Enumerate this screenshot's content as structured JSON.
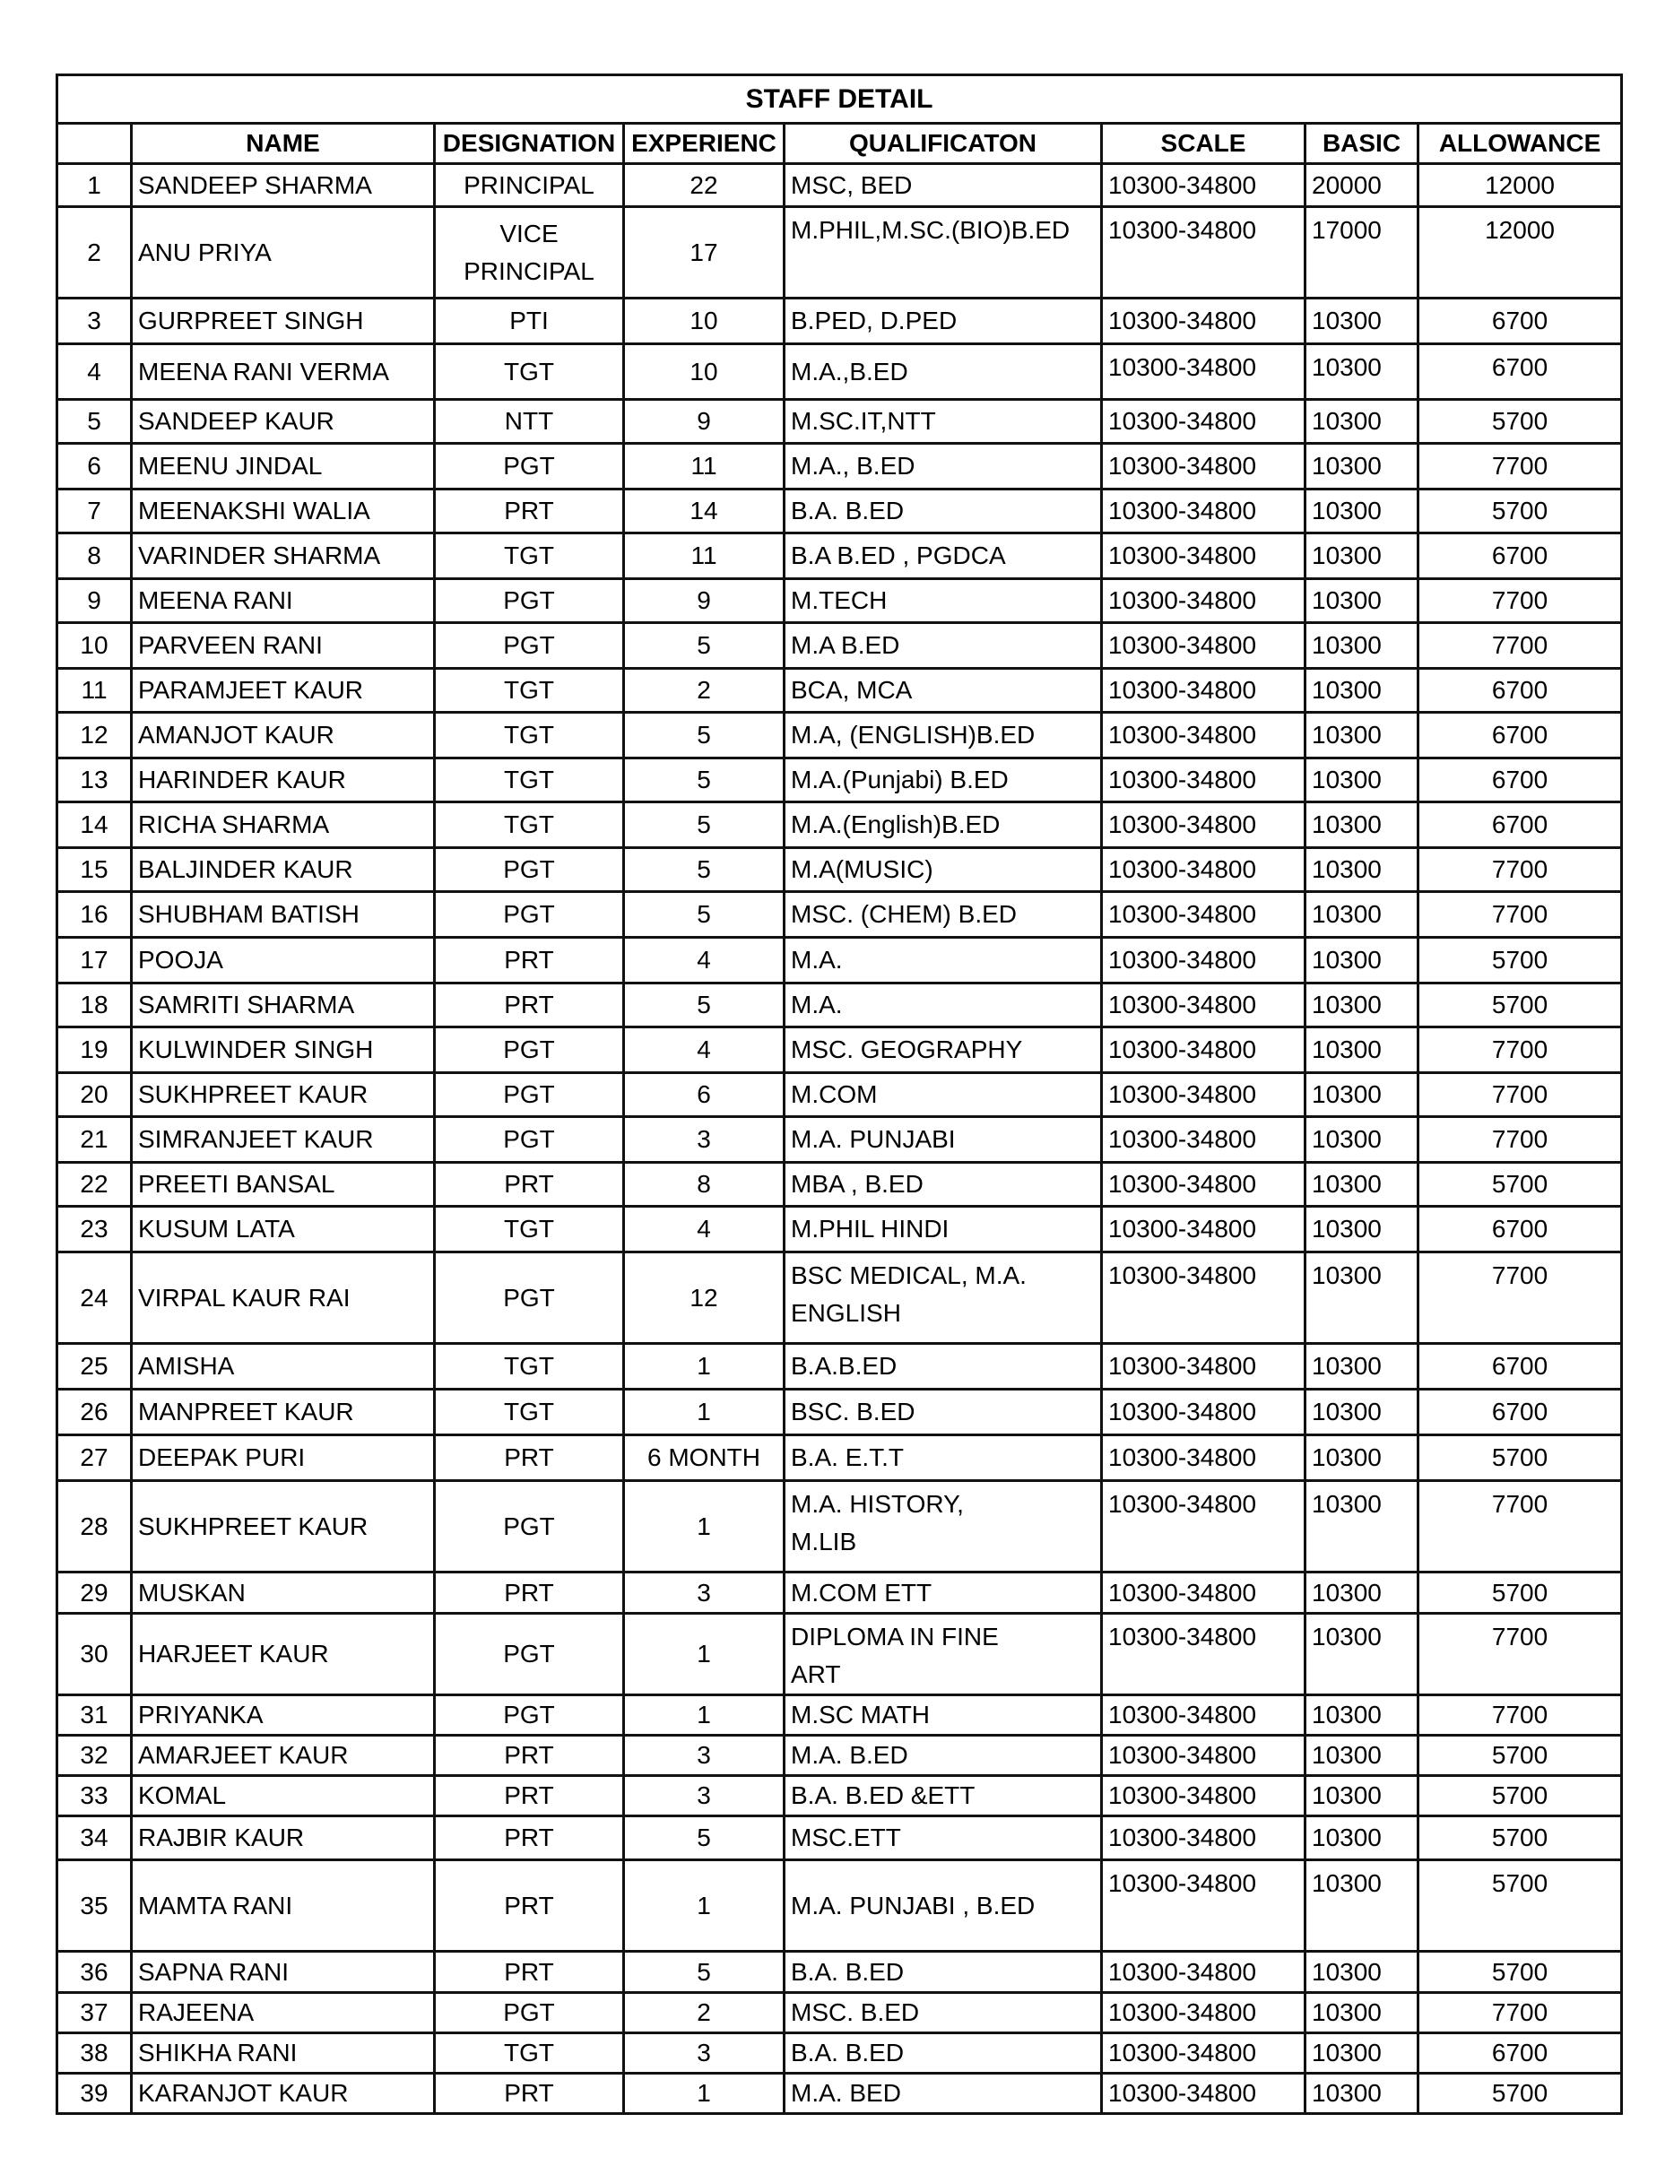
{
  "table": {
    "title": "STAFF DETAIL",
    "headers": [
      "",
      "NAME",
      "DESIGNATION",
      "EXPERIENC",
      "QUALIFICATON",
      "SCALE",
      "BASIC",
      "ALLOWANCE"
    ],
    "rows": [
      [
        "1",
        "SANDEEP SHARMA",
        "PRINCIPAL",
        "22",
        "MSC, BED",
        "10300-34800",
        "20000",
        "12000"
      ],
      [
        "2",
        "ANU PRIYA",
        "VICE\nPRINCIPAL",
        "17",
        "M.PHIL,M.SC.(BIO)B.ED",
        "10300-34800",
        "17000",
        "12000"
      ],
      [
        "3",
        "GURPREET SINGH",
        "PTI",
        "10",
        "B.PED, D.PED",
        "10300-34800",
        "10300",
        "6700"
      ],
      [
        "4",
        "MEENA RANI VERMA",
        "TGT",
        "10",
        "M.A.,B.ED",
        "10300-34800",
        "10300",
        "6700"
      ],
      [
        "5",
        "SANDEEP KAUR",
        "NTT",
        "9",
        "M.SC.IT,NTT",
        "10300-34800",
        "10300",
        "5700"
      ],
      [
        "6",
        "MEENU JINDAL",
        "PGT",
        "11",
        "M.A., B.ED",
        "10300-34800",
        "10300",
        "7700"
      ],
      [
        "7",
        "MEENAKSHI WALIA",
        "PRT",
        "14",
        "B.A. B.ED",
        "10300-34800",
        "10300",
        "5700"
      ],
      [
        "8",
        "VARINDER SHARMA",
        "TGT",
        "11",
        "B.A B.ED , PGDCA",
        "10300-34800",
        "10300",
        "6700"
      ],
      [
        "9",
        "MEENA RANI",
        "PGT",
        "9",
        "M.TECH",
        "10300-34800",
        "10300",
        "7700"
      ],
      [
        "10",
        "PARVEEN RANI",
        "PGT",
        "5",
        "M.A B.ED",
        "10300-34800",
        "10300",
        "7700"
      ],
      [
        "11",
        "PARAMJEET KAUR",
        "TGT",
        "2",
        "BCA, MCA",
        "10300-34800",
        "10300",
        "6700"
      ],
      [
        "12",
        "AMANJOT KAUR",
        "TGT",
        "5",
        "M.A, (ENGLISH)B.ED",
        "10300-34800",
        "10300",
        "6700"
      ],
      [
        "13",
        "HARINDER KAUR",
        "TGT",
        "5",
        "M.A.(Punjabi) B.ED",
        "10300-34800",
        "10300",
        "6700"
      ],
      [
        "14",
        "RICHA SHARMA",
        "TGT",
        "5",
        "M.A.(English)B.ED",
        "10300-34800",
        "10300",
        "6700"
      ],
      [
        "15",
        "BALJINDER KAUR",
        "PGT",
        "5",
        "M.A(MUSIC)",
        "10300-34800",
        "10300",
        "7700"
      ],
      [
        "16",
        "SHUBHAM BATISH",
        "PGT",
        "5",
        "MSC. (CHEM) B.ED",
        "10300-34800",
        "10300",
        "7700"
      ],
      [
        "17",
        "POOJA",
        "PRT",
        "4",
        "M.A.",
        "10300-34800",
        "10300",
        "5700"
      ],
      [
        "18",
        "SAMRITI  SHARMA",
        "PRT",
        "5",
        "M.A.",
        "10300-34800",
        "10300",
        "5700"
      ],
      [
        "19",
        "KULWINDER SINGH",
        "PGT",
        "4",
        "MSC. GEOGRAPHY",
        "10300-34800",
        "10300",
        "7700"
      ],
      [
        "20",
        "SUKHPREET KAUR",
        "PGT",
        "6",
        "M.COM",
        "10300-34800",
        "10300",
        "7700"
      ],
      [
        "21",
        "SIMRANJEET KAUR",
        "PGT",
        "3",
        "M.A. PUNJABI",
        "10300-34800",
        "10300",
        "7700"
      ],
      [
        "22",
        "PREETI BANSAL",
        "PRT",
        "8",
        "MBA , B.ED",
        "10300-34800",
        "10300",
        "5700"
      ],
      [
        "23",
        "KUSUM LATA",
        "TGT",
        "4",
        "M.PHIL HINDI",
        "10300-34800",
        "10300",
        "6700"
      ],
      [
        "24",
        "VIRPAL KAUR RAI",
        "PGT",
        "12",
        "BSC MEDICAL, M.A.\nENGLISH",
        "10300-34800",
        "10300",
        "7700"
      ],
      [
        "25",
        "AMISHA",
        "TGT",
        "1",
        "B.A.B.ED",
        "10300-34800",
        "10300",
        "6700"
      ],
      [
        "26",
        "MANPREET KAUR",
        "TGT",
        "1",
        "BSC. B.ED",
        "10300-34800",
        "10300",
        "6700"
      ],
      [
        "27",
        "DEEPAK PURI",
        "PRT",
        "6 MONTH",
        "B.A. E.T.T",
        "10300-34800",
        "10300",
        "5700"
      ],
      [
        "28",
        "SUKHPREET KAUR",
        "PGT",
        "1",
        "M.A. HISTORY,\nM.LIB",
        "10300-34800",
        "10300",
        "7700"
      ],
      [
        "29",
        "MUSKAN",
        "PRT",
        "3",
        "M.COM ETT",
        "10300-34800",
        "10300",
        "5700"
      ],
      [
        "30",
        "HARJEET KAUR",
        "PGT",
        "1",
        "DIPLOMA IN FINE\nART",
        "10300-34800",
        "10300",
        "7700"
      ],
      [
        "31",
        "PRIYANKA",
        "PGT",
        "1",
        "M.SC MATH",
        "10300-34800",
        "10300",
        "7700"
      ],
      [
        "32",
        "AMARJEET KAUR",
        "PRT",
        "3",
        "M.A. B.ED",
        "10300-34800",
        "10300",
        "5700"
      ],
      [
        "33",
        "KOMAL",
        "PRT",
        "3",
        "B.A. B.ED &ETT",
        "10300-34800",
        "10300",
        "5700"
      ],
      [
        "34",
        "RAJBIR KAUR",
        "PRT",
        "5",
        "MSC.ETT",
        "10300-34800",
        "10300",
        "5700"
      ],
      [
        "35",
        "MAMTA RANI",
        "PRT",
        "1",
        "M.A. PUNJABI , B.ED",
        "10300-34800",
        "10300",
        "5700"
      ],
      [
        "36",
        "SAPNA RANI",
        "PRT",
        "5",
        "B.A. B.ED",
        "10300-34800",
        "10300",
        "5700"
      ],
      [
        "37",
        "RAJEENA",
        "PGT",
        "2",
        "MSC. B.ED",
        "10300-34800",
        "10300",
        "7700"
      ],
      [
        "38",
        "SHIKHA RANI",
        "TGT",
        "3",
        "B.A. B.ED",
        "10300-34800",
        "10300",
        "6700"
      ],
      [
        "39",
        "KARANJOT KAUR",
        "PRT",
        "1",
        "M.A. BED",
        "10300-34800",
        "10300",
        "5700"
      ]
    ]
  }
}
